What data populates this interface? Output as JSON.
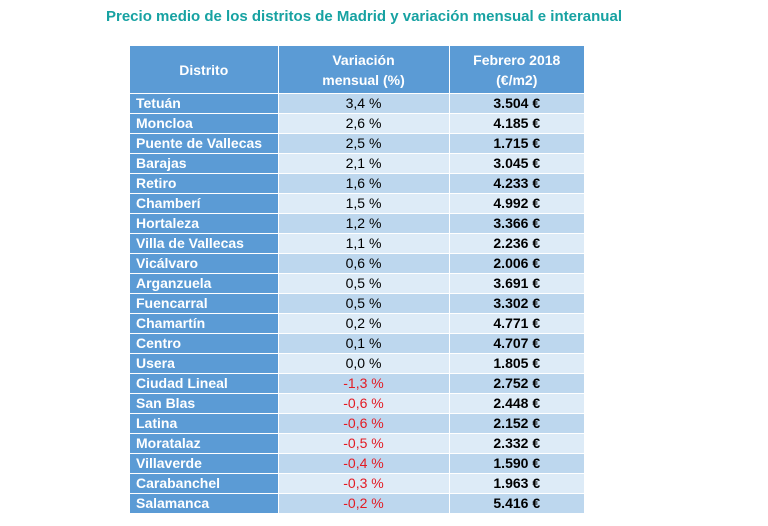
{
  "title": "Precio medio de los distritos de Madrid y variación mensual e interanual",
  "table": {
    "headers": {
      "district": "Distrito",
      "variation_line1": "Variación",
      "variation_line2": "mensual (%)",
      "price_line1": "Febrero 2018",
      "price_line2": "(€/m2)"
    },
    "rows": [
      {
        "district": "Tetuán",
        "variation": "3,4 %",
        "price": "3.504 €",
        "negative": false
      },
      {
        "district": "Moncloa",
        "variation": "2,6 %",
        "price": "4.185 €",
        "negative": false
      },
      {
        "district": "Puente de Vallecas",
        "variation": "2,5 %",
        "price": "1.715 €",
        "negative": false
      },
      {
        "district": "Barajas",
        "variation": "2,1 %",
        "price": "3.045 €",
        "negative": false
      },
      {
        "district": "Retiro",
        "variation": "1,6 %",
        "price": "4.233 €",
        "negative": false
      },
      {
        "district": "Chamberí",
        "variation": "1,5 %",
        "price": "4.992 €",
        "negative": false
      },
      {
        "district": "Hortaleza",
        "variation": "1,2 %",
        "price": "3.366 €",
        "negative": false
      },
      {
        "district": "Villa de Vallecas",
        "variation": "1,1 %",
        "price": "2.236 €",
        "negative": false
      },
      {
        "district": "Vicálvaro",
        "variation": "0,6 %",
        "price": "2.006 €",
        "negative": false
      },
      {
        "district": "Arganzuela",
        "variation": "0,5 %",
        "price": "3.691 €",
        "negative": false
      },
      {
        "district": "Fuencarral",
        "variation": "0,5 %",
        "price": "3.302 €",
        "negative": false
      },
      {
        "district": "Chamartín",
        "variation": "0,2 %",
        "price": "4.771 €",
        "negative": false
      },
      {
        "district": "Centro",
        "variation": "0,1 %",
        "price": "4.707 €",
        "negative": false
      },
      {
        "district": "Usera",
        "variation": "0,0 %",
        "price": "1.805 €",
        "negative": false
      },
      {
        "district": "Ciudad Lineal",
        "variation": "-1,3 %",
        "price": "2.752 €",
        "negative": true
      },
      {
        "district": "San Blas",
        "variation": "-0,6 %",
        "price": "2.448 €",
        "negative": true
      },
      {
        "district": "Latina",
        "variation": "-0,6 %",
        "price": "2.152 €",
        "negative": true
      },
      {
        "district": "Moratalaz",
        "variation": "-0,5 %",
        "price": "2.332 €",
        "negative": true
      },
      {
        "district": "Villaverde",
        "variation": "-0,4 %",
        "price": "1.590 €",
        "negative": true
      },
      {
        "district": "Carabanchel",
        "variation": "-0,3 %",
        "price": "1.963 €",
        "negative": true
      },
      {
        "district": "Salamanca",
        "variation": "-0,2 %",
        "price": "5.416 €",
        "negative": true
      }
    ]
  },
  "colors": {
    "title": "#17a2a2",
    "header_bg": "#5b9bd5",
    "row_dark": "#bdd7ee",
    "row_light": "#ddebf7",
    "negative": "#e31b23"
  }
}
